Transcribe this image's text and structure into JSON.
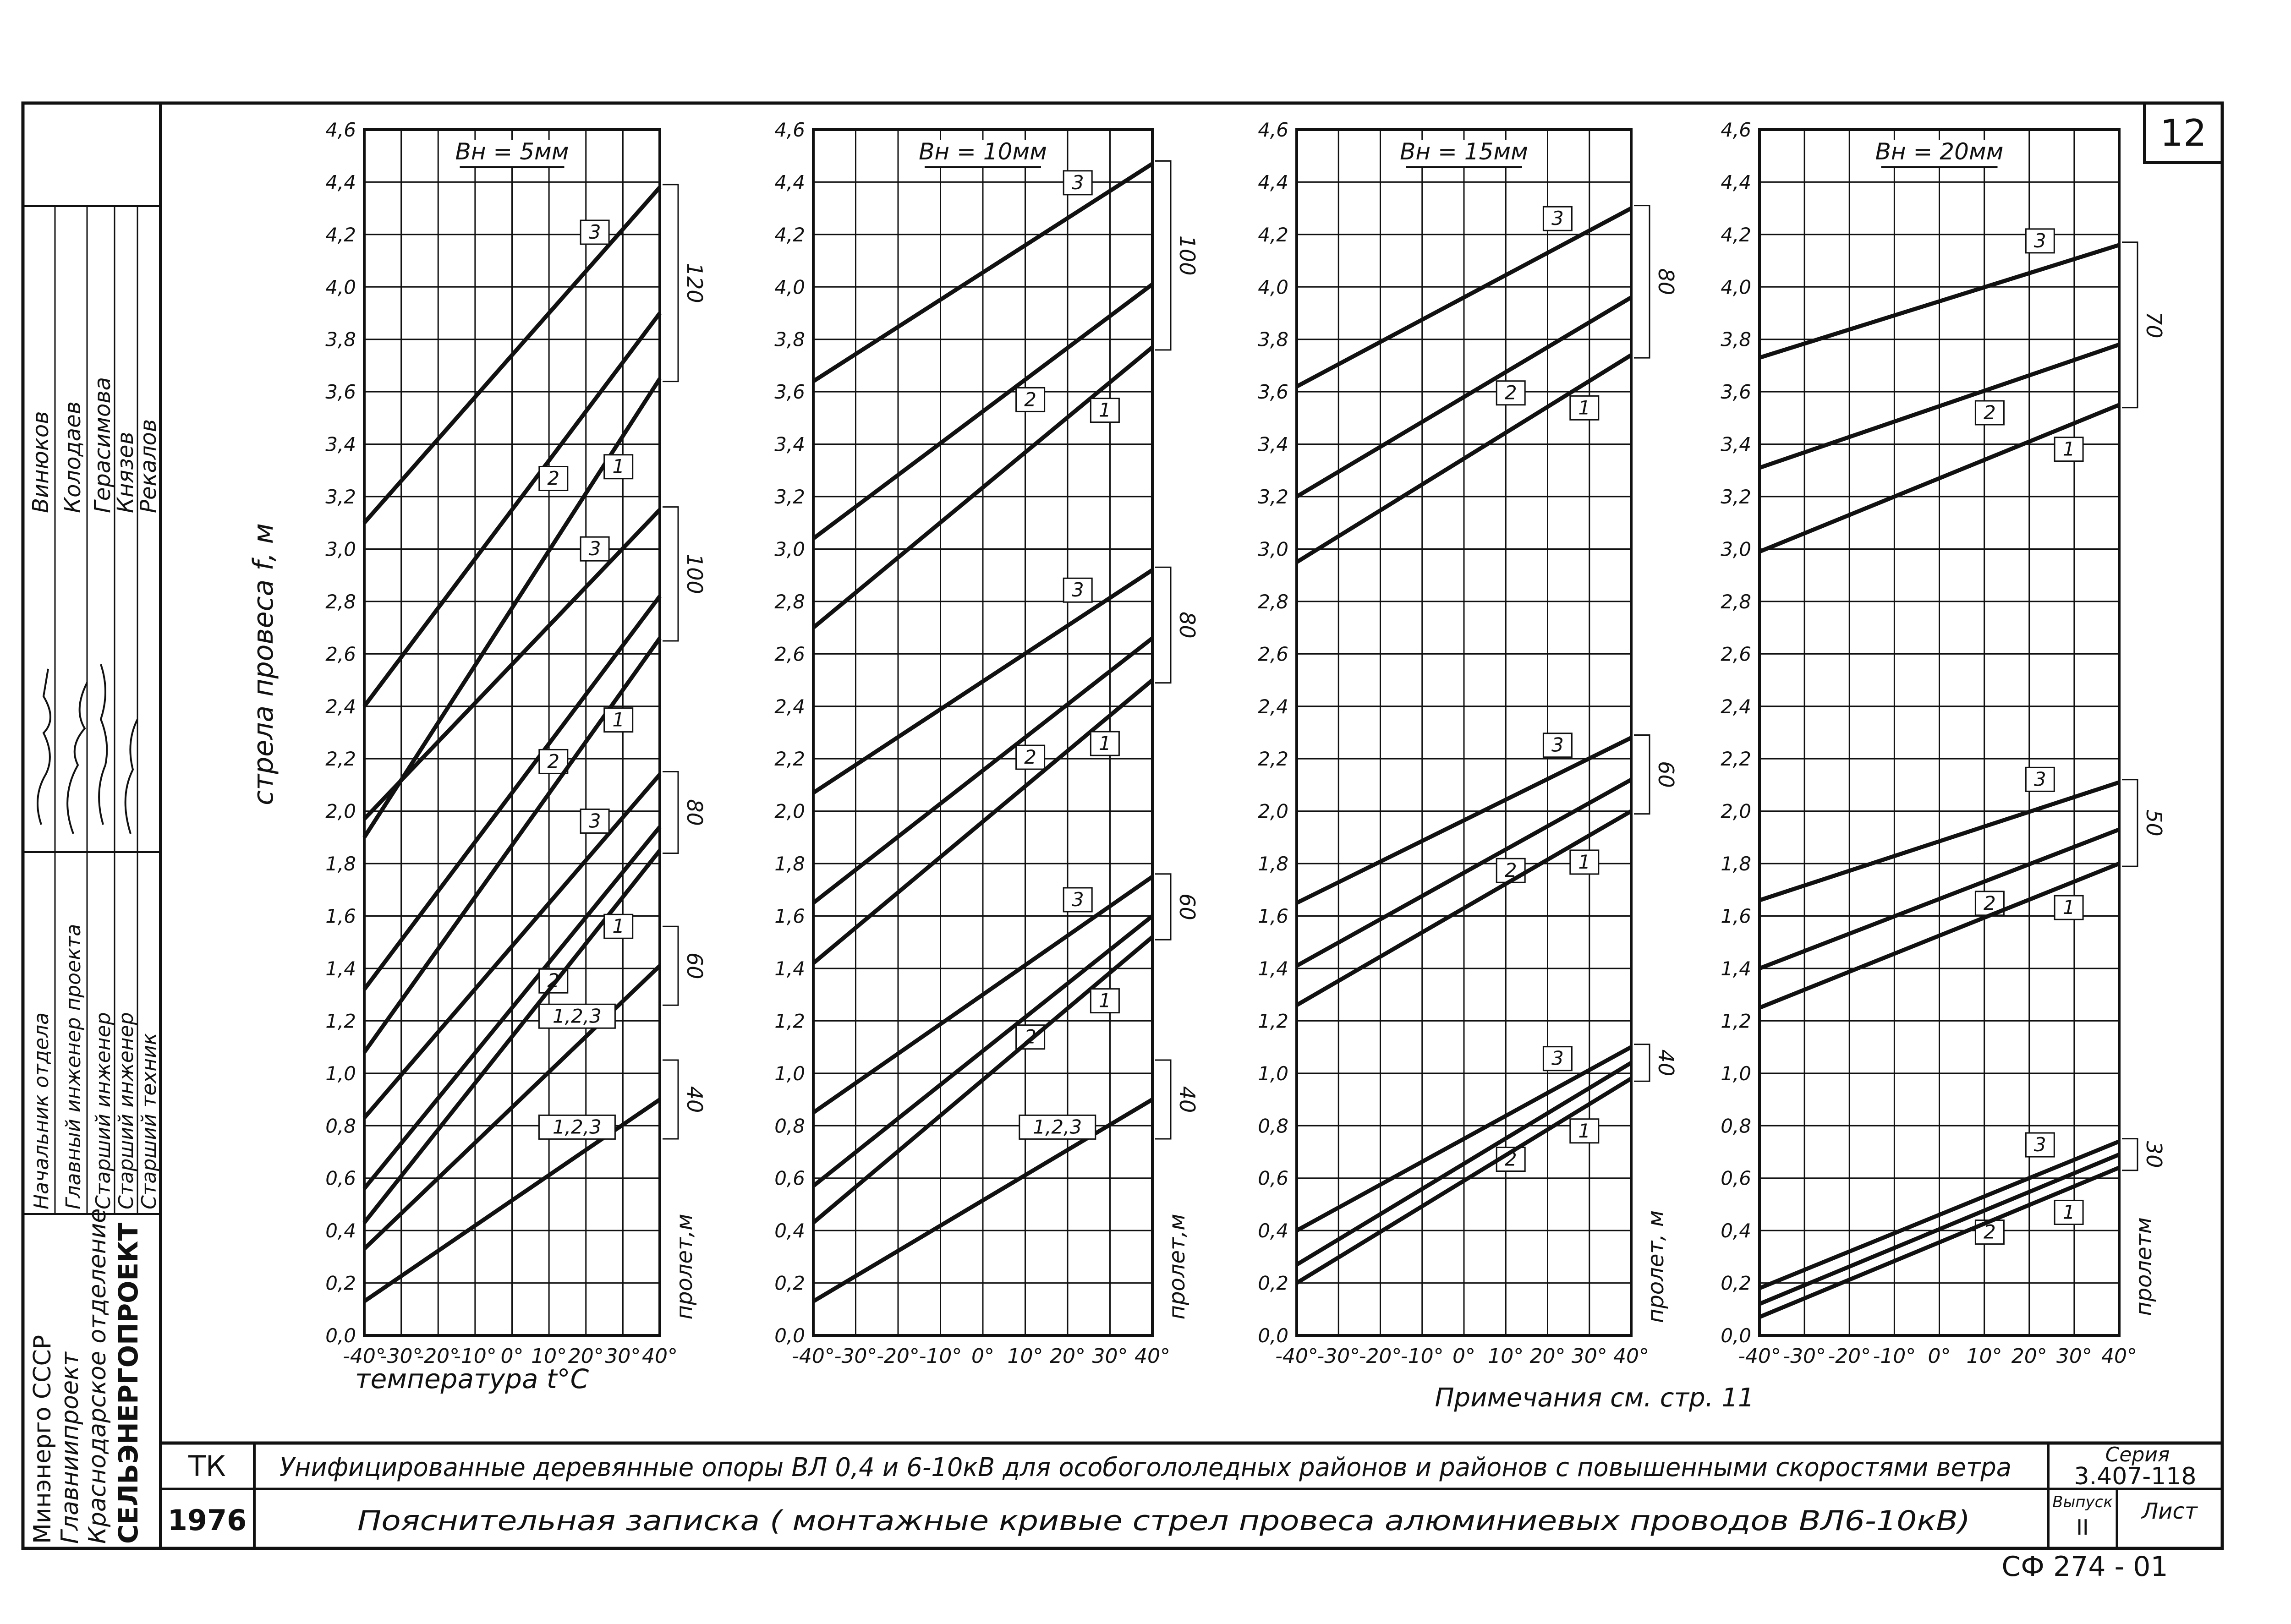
{
  "sheet": {
    "number": "12",
    "org": [
      "Минэнерго СССР",
      "Главниипроект",
      "Краснодарское отделение",
      "СЕЛЬЭНЕРГОПРОЕКТ"
    ],
    "staff": [
      {
        "role": "Начальник отдела",
        "name": "Винюков"
      },
      {
        "role": "Главный инженер проекта",
        "name": "Колодаев"
      },
      {
        "role": "Старший инженер",
        "name": "Герасимова"
      },
      {
        "role": "Старший инженер",
        "name": "Князев"
      },
      {
        "role": "Старший техник",
        "name": "Рекалов"
      }
    ],
    "code": "ТК",
    "year": "1976",
    "title": "Унифицированные деревянные опоры ВЛ 0,4 и 6-10кВ для особогололедных районов и районов с повышенными скоростями ветра",
    "subtitle": "Пояснительная записка ( монтажные кривые стрел провеса алюминиевых проводов ВЛ6-10кВ)",
    "series_label": "Серия",
    "series_value": "3.407-118",
    "issue_label": "Выпуск",
    "issue_value": "II",
    "sheet_label": "Лист",
    "note": "Примечания см. стр. 11",
    "stamp": "СФ 274 - 01",
    "y_axis_label": "стрела провеса f, м",
    "x_axis_label": "температура t°C",
    "span_label": "пролет,м"
  },
  "colors": {
    "ink": "#111111",
    "paper": "#ffffff"
  },
  "chart_data": [
    {
      "type": "line",
      "title": "Bн = 5мм",
      "xlabel": "температура t°C",
      "ylabel": "стрела провеса f, м",
      "xlim": [
        -40,
        40
      ],
      "ylim": [
        0,
        4.6
      ],
      "x_ticks": [
        "-40°",
        "-30°",
        "-20°",
        "-10°",
        "0°",
        "10°",
        "20°",
        "30°",
        "40°"
      ],
      "y_ticks": [
        "0,0",
        "0,2",
        "0,4",
        "0,6",
        "0,8",
        "1,0",
        "1,2",
        "1,4",
        "1,6",
        "1,8",
        "2,0",
        "2,2",
        "2,4",
        "2,6",
        "2,8",
        "3,0",
        "3,2",
        "3,4",
        "3,6",
        "3,8",
        "4,0",
        "4,2",
        "4,4",
        "4,6"
      ],
      "grid": true,
      "span_label": "пролет,м",
      "groups": [
        {
          "span": "120",
          "series": [
            {
              "name": "3",
              "x": [
                -40,
                40
              ],
              "y": [
                3.1,
                4.38
              ]
            },
            {
              "name": "2",
              "x": [
                -40,
                40
              ],
              "y": [
                2.4,
                3.9
              ]
            },
            {
              "name": "1",
              "x": [
                -40,
                40
              ],
              "y": [
                1.9,
                3.65
              ]
            }
          ]
        },
        {
          "span": "100",
          "series": [
            {
              "name": "3",
              "x": [
                -40,
                40
              ],
              "y": [
                1.97,
                3.15
              ]
            },
            {
              "name": "2",
              "x": [
                -40,
                40
              ],
              "y": [
                1.32,
                2.82
              ]
            },
            {
              "name": "1",
              "x": [
                -40,
                40
              ],
              "y": [
                1.08,
                2.66
              ]
            }
          ]
        },
        {
          "span": "80",
          "series": [
            {
              "name": "3",
              "x": [
                -40,
                40
              ],
              "y": [
                0.83,
                2.14
              ]
            },
            {
              "name": "2",
              "x": [
                -40,
                40
              ],
              "y": [
                0.56,
                1.94
              ]
            },
            {
              "name": "1",
              "x": [
                -40,
                40
              ],
              "y": [
                0.43,
                1.85
              ]
            }
          ]
        },
        {
          "span": "60",
          "series": [
            {
              "name": "1,2,3",
              "x": [
                -40,
                40
              ],
              "y": [
                0.33,
                1.41
              ]
            }
          ]
        },
        {
          "span": "40",
          "series": [
            {
              "name": "1,2,3",
              "x": [
                -40,
                40
              ],
              "y": [
                0.13,
                0.9
              ]
            }
          ]
        }
      ]
    },
    {
      "type": "line",
      "title": "Bн = 10мм",
      "xlabel": "",
      "ylabel": "",
      "xlim": [
        -40,
        40
      ],
      "ylim": [
        0,
        4.6
      ],
      "x_ticks": [
        "-40°",
        "-30°",
        "-20°",
        "-10°",
        "0°",
        "10°",
        "20°",
        "30°",
        "40°"
      ],
      "y_ticks": [
        "0,0",
        "0,2",
        "0,4",
        "0,6",
        "0,8",
        "1,0",
        "1,2",
        "1,4",
        "1,6",
        "1,8",
        "2,0",
        "2,2",
        "2,4",
        "2,6",
        "2,8",
        "3,0",
        "3,2",
        "3,4",
        "3,6",
        "3,8",
        "4,0",
        "4,2",
        "4,4",
        "4,6"
      ],
      "grid": true,
      "span_label": "пролет,м",
      "groups": [
        {
          "span": "100",
          "series": [
            {
              "name": "3",
              "x": [
                -40,
                40
              ],
              "y": [
                3.64,
                4.47
              ]
            },
            {
              "name": "2",
              "x": [
                -40,
                40
              ],
              "y": [
                3.04,
                4.01
              ]
            },
            {
              "name": "1",
              "x": [
                -40,
                40
              ],
              "y": [
                2.7,
                3.77
              ]
            }
          ]
        },
        {
          "span": "80",
          "series": [
            {
              "name": "3",
              "x": [
                -40,
                40
              ],
              "y": [
                2.07,
                2.92
              ]
            },
            {
              "name": "2",
              "x": [
                -40,
                40
              ],
              "y": [
                1.65,
                2.66
              ]
            },
            {
              "name": "1",
              "x": [
                -40,
                40
              ],
              "y": [
                1.42,
                2.5
              ]
            }
          ]
        },
        {
          "span": "60",
          "series": [
            {
              "name": "3",
              "x": [
                -40,
                40
              ],
              "y": [
                0.85,
                1.75
              ]
            },
            {
              "name": "2",
              "x": [
                -40,
                40
              ],
              "y": [
                0.57,
                1.6
              ]
            },
            {
              "name": "1",
              "x": [
                -40,
                40
              ],
              "y": [
                0.43,
                1.52
              ]
            }
          ]
        },
        {
          "span": "40",
          "series": [
            {
              "name": "1,2,3",
              "x": [
                -40,
                40
              ],
              "y": [
                0.13,
                0.9
              ]
            }
          ]
        }
      ]
    },
    {
      "type": "line",
      "title": "Bн = 15мм",
      "xlabel": "",
      "ylabel": "",
      "xlim": [
        -40,
        40
      ],
      "ylim": [
        0,
        4.6
      ],
      "x_ticks": [
        "-40°",
        "-30°",
        "-20°",
        "-10°",
        "0°",
        "10°",
        "20°",
        "30°",
        "40°"
      ],
      "y_ticks": [
        "0,0",
        "0,2",
        "0,4",
        "0,6",
        "0,8",
        "1,0",
        "1,2",
        "1,4",
        "1,6",
        "1,8",
        "2,0",
        "2,2",
        "2,4",
        "2,6",
        "2,8",
        "3,0",
        "3,2",
        "3,4",
        "3,6",
        "3,8",
        "4,0",
        "4,2",
        "4,4",
        "4,6"
      ],
      "grid": true,
      "span_label": "пролет, м",
      "groups": [
        {
          "span": "80",
          "series": [
            {
              "name": "3",
              "x": [
                -40,
                40
              ],
              "y": [
                3.62,
                4.3
              ]
            },
            {
              "name": "2",
              "x": [
                -40,
                40
              ],
              "y": [
                3.2,
                3.96
              ]
            },
            {
              "name": "1",
              "x": [
                -40,
                40
              ],
              "y": [
                2.95,
                3.74
              ]
            }
          ]
        },
        {
          "span": "60",
          "series": [
            {
              "name": "3",
              "x": [
                -40,
                40
              ],
              "y": [
                1.65,
                2.28
              ]
            },
            {
              "name": "2",
              "x": [
                -40,
                40
              ],
              "y": [
                1.41,
                2.12
              ]
            },
            {
              "name": "1",
              "x": [
                -40,
                40
              ],
              "y": [
                1.26,
                2.0
              ]
            }
          ]
        },
        {
          "span": "40",
          "series": [
            {
              "name": "3",
              "x": [
                -40,
                40
              ],
              "y": [
                0.4,
                1.1
              ]
            },
            {
              "name": "2",
              "x": [
                -40,
                40
              ],
              "y": [
                0.27,
                1.04
              ]
            },
            {
              "name": "1",
              "x": [
                -40,
                40
              ],
              "y": [
                0.2,
                0.98
              ]
            }
          ]
        }
      ]
    },
    {
      "type": "line",
      "title": "Bн = 20мм",
      "xlabel": "",
      "ylabel": "",
      "xlim": [
        -40,
        40
      ],
      "ylim": [
        0,
        4.6
      ],
      "x_ticks": [
        "-40°",
        "-30°",
        "-20°",
        "-10°",
        "0°",
        "10°",
        "20°",
        "30°",
        "40°"
      ],
      "y_ticks": [
        "0,0",
        "0,2",
        "0,4",
        "0,6",
        "0,8",
        "1,0",
        "1,2",
        "1,4",
        "1,6",
        "1,8",
        "2,0",
        "2,2",
        "2,4",
        "2,6",
        "2,8",
        "3,0",
        "3,2",
        "3,4",
        "3,6",
        "3,8",
        "4,0",
        "4,2",
        "4,4",
        "4,6"
      ],
      "grid": true,
      "span_label": "пролетм",
      "groups": [
        {
          "span": "70",
          "series": [
            {
              "name": "3",
              "x": [
                -40,
                40
              ],
              "y": [
                3.73,
                4.16
              ]
            },
            {
              "name": "2",
              "x": [
                -40,
                40
              ],
              "y": [
                3.31,
                3.78
              ]
            },
            {
              "name": "1",
              "x": [
                -40,
                40
              ],
              "y": [
                2.99,
                3.55
              ]
            }
          ]
        },
        {
          "span": "50",
          "series": [
            {
              "name": "3",
              "x": [
                -40,
                40
              ],
              "y": [
                1.66,
                2.11
              ]
            },
            {
              "name": "2",
              "x": [
                -40,
                40
              ],
              "y": [
                1.4,
                1.93
              ]
            },
            {
              "name": "1",
              "x": [
                -40,
                40
              ],
              "y": [
                1.25,
                1.8
              ]
            }
          ]
        },
        {
          "span": "30",
          "series": [
            {
              "name": "3",
              "x": [
                -40,
                40
              ],
              "y": [
                0.18,
                0.74
              ]
            },
            {
              "name": "2",
              "x": [
                -40,
                40
              ],
              "y": [
                0.12,
                0.69
              ]
            },
            {
              "name": "1",
              "x": [
                -40,
                40
              ],
              "y": [
                0.07,
                0.64
              ]
            }
          ]
        }
      ]
    }
  ]
}
